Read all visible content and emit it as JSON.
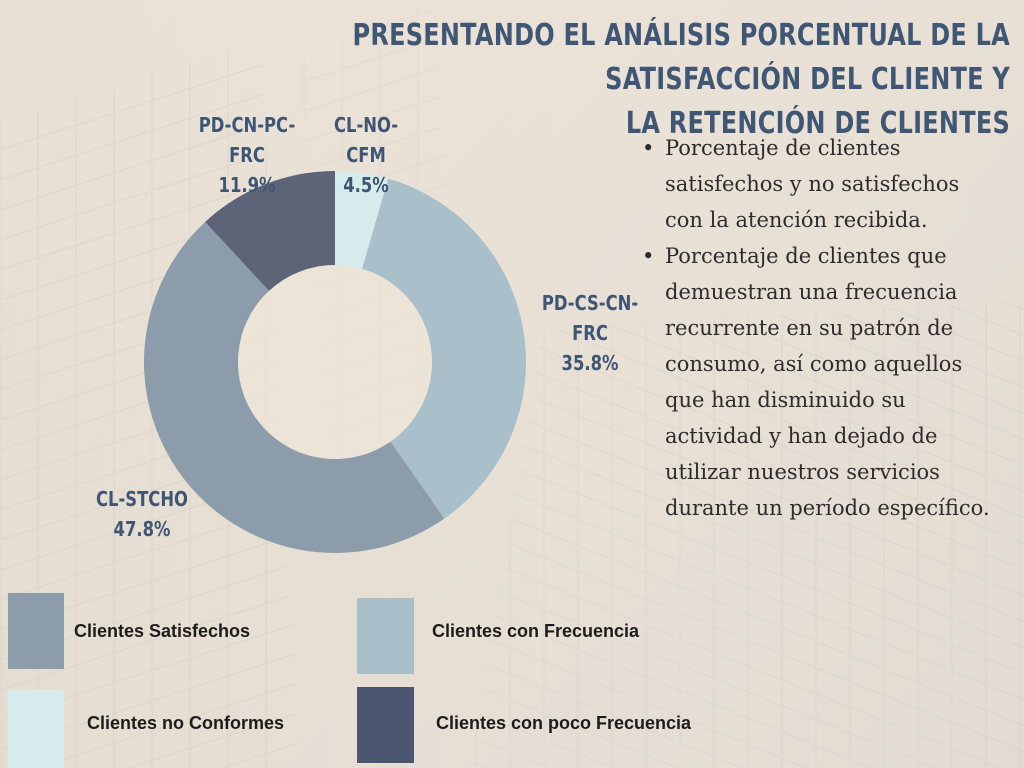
{
  "title": {
    "line1": "PRESENTANDO EL ANÁLISIS PORCENTUAL DE LA SATISFACCIÓN DEL CLIENTE Y",
    "line2": "LA RETENCIÓN DE CLIENTES"
  },
  "colors": {
    "title": "#3f5774",
    "label": "#3e5574",
    "satisfechos": "#8c9caa",
    "frecuencia": "#a9bfca",
    "no_conformes": "#d6ebec",
    "poco_frecuencia": "#4c5670"
  },
  "chart_data": {
    "type": "pie",
    "donut": true,
    "title": "",
    "slices": [
      {
        "code": "CL-NO-CFM",
        "value": 4.5,
        "label": "4.5%",
        "color": "#d6ebec"
      },
      {
        "code": "PD-CS-CN-FRC",
        "value": 35.8,
        "label": "35.8%",
        "color": "#a9bfca"
      },
      {
        "code": "CL-STCHO",
        "value": 47.8,
        "label": "47.8%",
        "color": "#8c9caa"
      },
      {
        "code": "PD-CN-PC-FRC",
        "value": 11.9,
        "label": "11.9%",
        "color": "#5d6478"
      }
    ]
  },
  "bullets": [
    "Porcentaje de clientes satisfechos y no satisfechos con la atención recibida.",
    "Porcentaje de clientes que demuestran una frecuencia recurrente en su patrón de consumo, así como aquellos que han disminuido su actividad y han dejado de utilizar nuestros servicios durante un período específico."
  ],
  "legend": [
    {
      "label": "Clientes Satisfechos",
      "color": "#8c9caa"
    },
    {
      "label": "Clientes con Frecuencia",
      "color": "#a9bfca"
    },
    {
      "label": "Clientes no Conformes",
      "color": "#d6ebec"
    },
    {
      "label": "Clientes con poco Frecuencia",
      "color": "#4c5670"
    }
  ]
}
